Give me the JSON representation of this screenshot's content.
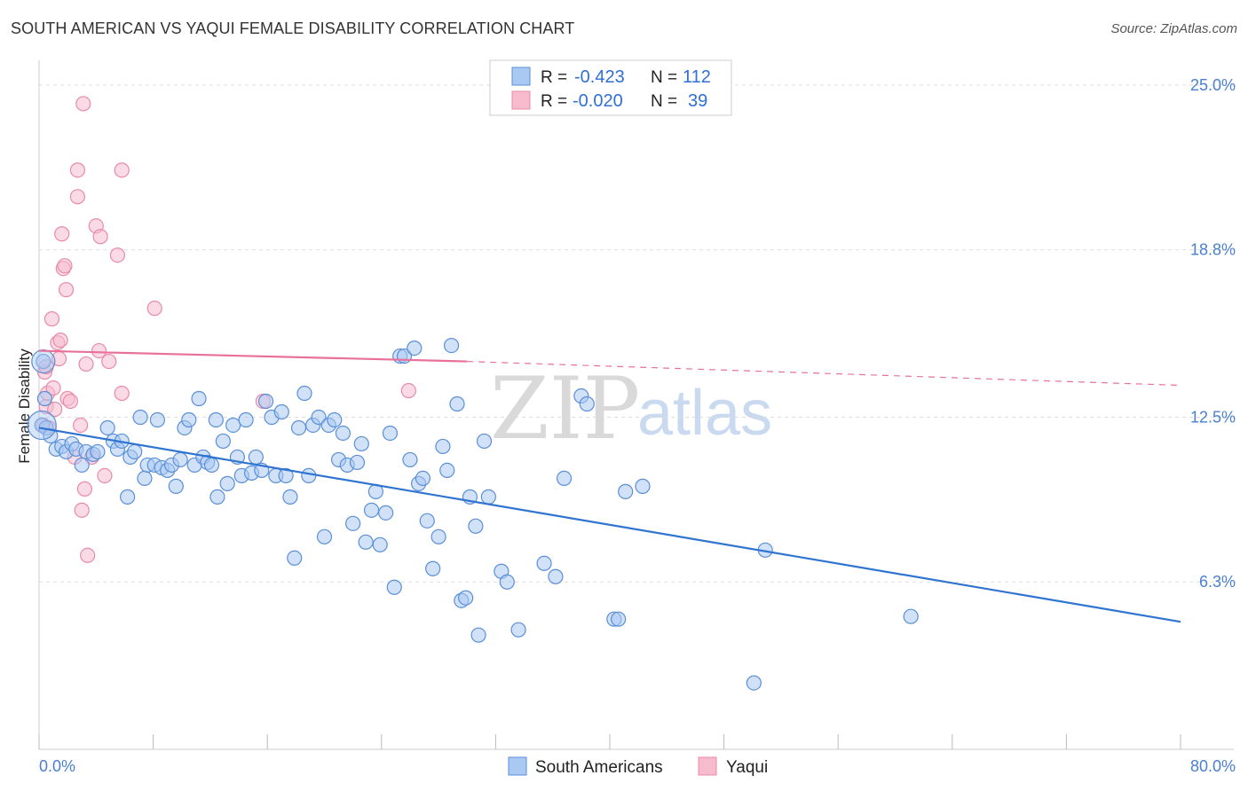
{
  "title": "SOUTH AMERICAN VS YAQUI FEMALE DISABILITY CORRELATION CHART",
  "source": "Source: ZipAtlas.com",
  "watermark": {
    "zip": "ZIP",
    "atlas": "atlas"
  },
  "colors": {
    "blue_fill": "#a9c8f2",
    "blue_stroke": "#5a8fd8",
    "blue_line": "#2f74d0",
    "pink_fill": "#f6bccd",
    "pink_stroke": "#ea8aa8",
    "pink_line": "#e8709a",
    "grid": "#dddddd",
    "tick_text": "#4a7fd0"
  },
  "legend": {
    "rows": [
      {
        "r_label": "R =",
        "r_value": "-0.423",
        "n_label": "N =",
        "n_value": "112",
        "swatch": "blue"
      },
      {
        "r_label": "R =",
        "r_value": "-0.020",
        "n_label": "N =",
        "n_value": "39",
        "swatch": "pink"
      }
    ]
  },
  "bottom_legend": [
    {
      "label": "South Americans",
      "swatch": "blue"
    },
    {
      "label": "Yaqui",
      "swatch": "pink"
    }
  ],
  "chart_data": {
    "type": "scatter",
    "title": "SOUTH AMERICAN VS YAQUI FEMALE DISABILITY CORRELATION CHART",
    "xlabel": "",
    "ylabel": "Female Disability",
    "xlim": [
      0,
      80
    ],
    "ylim": [
      0,
      25.6
    ],
    "x_tick_labels": [
      "0.0%",
      "80.0%"
    ],
    "y_ticks": [
      6.3,
      12.5,
      18.8,
      25.0
    ],
    "y_tick_labels": [
      "6.3%",
      "12.5%",
      "18.8%",
      "25.0%"
    ],
    "grid": "horizontal dashed",
    "legend_position": "top-center",
    "series": [
      {
        "name": "South Americans",
        "color": "blue",
        "trend": {
          "x": [
            0,
            80
          ],
          "y": [
            12.1,
            4.8
          ],
          "style": "solid"
        },
        "points": [
          [
            0.2,
            12.2
          ],
          [
            0.3,
            14.6
          ],
          [
            0.4,
            13.2
          ],
          [
            0.5,
            12.1
          ],
          [
            0.8,
            11.8
          ],
          [
            1.2,
            11.3
          ],
          [
            1.6,
            11.4
          ],
          [
            1.9,
            11.2
          ],
          [
            2.3,
            11.5
          ],
          [
            2.6,
            11.3
          ],
          [
            3.0,
            10.7
          ],
          [
            3.3,
            11.2
          ],
          [
            3.8,
            11.1
          ],
          [
            4.1,
            11.2
          ],
          [
            4.8,
            12.1
          ],
          [
            5.2,
            11.6
          ],
          [
            5.5,
            11.3
          ],
          [
            5.8,
            11.6
          ],
          [
            6.2,
            9.5
          ],
          [
            6.4,
            11.0
          ],
          [
            6.7,
            11.2
          ],
          [
            7.1,
            12.5
          ],
          [
            7.4,
            10.2
          ],
          [
            7.6,
            10.7
          ],
          [
            8.1,
            10.7
          ],
          [
            8.3,
            12.4
          ],
          [
            8.6,
            10.6
          ],
          [
            9.0,
            10.5
          ],
          [
            9.3,
            10.7
          ],
          [
            9.6,
            9.9
          ],
          [
            9.9,
            10.9
          ],
          [
            10.2,
            12.1
          ],
          [
            10.5,
            12.4
          ],
          [
            10.9,
            10.7
          ],
          [
            11.2,
            13.2
          ],
          [
            11.5,
            11.0
          ],
          [
            11.8,
            10.8
          ],
          [
            12.1,
            10.7
          ],
          [
            12.4,
            12.4
          ],
          [
            12.5,
            9.5
          ],
          [
            12.9,
            11.6
          ],
          [
            13.2,
            10.0
          ],
          [
            13.6,
            12.2
          ],
          [
            13.9,
            11.0
          ],
          [
            14.2,
            10.3
          ],
          [
            14.5,
            12.4
          ],
          [
            14.9,
            10.4
          ],
          [
            15.2,
            11.0
          ],
          [
            15.6,
            10.5
          ],
          [
            15.9,
            13.1
          ],
          [
            16.3,
            12.5
          ],
          [
            16.6,
            10.3
          ],
          [
            17.0,
            12.7
          ],
          [
            17.3,
            10.3
          ],
          [
            17.6,
            9.5
          ],
          [
            17.9,
            7.2
          ],
          [
            18.2,
            12.1
          ],
          [
            18.6,
            13.4
          ],
          [
            18.9,
            10.3
          ],
          [
            19.2,
            12.2
          ],
          [
            19.6,
            12.5
          ],
          [
            20.0,
            8.0
          ],
          [
            20.3,
            12.2
          ],
          [
            20.7,
            12.4
          ],
          [
            21.0,
            10.9
          ],
          [
            21.3,
            11.9
          ],
          [
            21.6,
            10.7
          ],
          [
            22.0,
            8.5
          ],
          [
            22.3,
            10.8
          ],
          [
            22.6,
            11.5
          ],
          [
            22.9,
            7.8
          ],
          [
            23.3,
            9.0
          ],
          [
            23.6,
            9.7
          ],
          [
            23.9,
            7.7
          ],
          [
            24.3,
            8.9
          ],
          [
            24.6,
            11.9
          ],
          [
            24.9,
            6.1
          ],
          [
            25.3,
            14.8
          ],
          [
            25.6,
            14.8
          ],
          [
            26.0,
            10.9
          ],
          [
            26.3,
            15.1
          ],
          [
            26.6,
            10.0
          ],
          [
            26.9,
            10.2
          ],
          [
            27.2,
            8.6
          ],
          [
            27.6,
            6.8
          ],
          [
            28.0,
            8.0
          ],
          [
            28.3,
            11.4
          ],
          [
            28.6,
            10.5
          ],
          [
            28.9,
            15.2
          ],
          [
            29.3,
            13.0
          ],
          [
            29.6,
            5.6
          ],
          [
            29.9,
            5.7
          ],
          [
            30.2,
            9.5
          ],
          [
            30.6,
            8.4
          ],
          [
            30.8,
            4.3
          ],
          [
            31.2,
            11.6
          ],
          [
            31.5,
            9.5
          ],
          [
            32.4,
            6.7
          ],
          [
            32.8,
            6.3
          ],
          [
            33.6,
            4.5
          ],
          [
            35.4,
            7.0
          ],
          [
            36.2,
            6.5
          ],
          [
            36.8,
            10.2
          ],
          [
            38.0,
            13.3
          ],
          [
            38.4,
            13.0
          ],
          [
            40.3,
            4.9
          ],
          [
            40.6,
            4.9
          ],
          [
            41.1,
            9.7
          ],
          [
            42.3,
            9.9
          ],
          [
            50.1,
            2.5
          ],
          [
            50.9,
            7.5
          ],
          [
            61.1,
            5.0
          ]
        ]
      },
      {
        "name": "Yaqui",
        "color": "pink",
        "trend": {
          "x": [
            0,
            30,
            80
          ],
          "y": [
            15.0,
            14.6,
            13.7
          ],
          "style": "solid-then-dashed"
        },
        "points": [
          [
            0.3,
            12.2
          ],
          [
            0.4,
            14.2
          ],
          [
            0.5,
            14.4
          ],
          [
            0.5,
            12.9
          ],
          [
            0.6,
            13.4
          ],
          [
            0.7,
            12.1
          ],
          [
            0.9,
            16.2
          ],
          [
            1.0,
            13.6
          ],
          [
            1.1,
            12.8
          ],
          [
            1.3,
            15.3
          ],
          [
            1.4,
            14.7
          ],
          [
            1.5,
            15.4
          ],
          [
            1.6,
            19.4
          ],
          [
            1.7,
            18.1
          ],
          [
            1.8,
            18.2
          ],
          [
            1.9,
            17.3
          ],
          [
            2.0,
            13.2
          ],
          [
            2.2,
            13.1
          ],
          [
            2.5,
            11.0
          ],
          [
            2.7,
            21.8
          ],
          [
            2.7,
            20.8
          ],
          [
            2.9,
            12.2
          ],
          [
            3.0,
            9.0
          ],
          [
            3.1,
            24.3
          ],
          [
            3.2,
            9.8
          ],
          [
            3.3,
            14.5
          ],
          [
            3.4,
            7.3
          ],
          [
            3.7,
            11.0
          ],
          [
            4.0,
            19.7
          ],
          [
            4.2,
            15.0
          ],
          [
            4.3,
            19.3
          ],
          [
            4.6,
            10.3
          ],
          [
            4.9,
            14.6
          ],
          [
            5.5,
            18.6
          ],
          [
            5.8,
            13.4
          ],
          [
            5.8,
            21.8
          ],
          [
            8.1,
            16.6
          ],
          [
            15.7,
            13.1
          ],
          [
            25.9,
            13.5
          ]
        ]
      }
    ]
  }
}
